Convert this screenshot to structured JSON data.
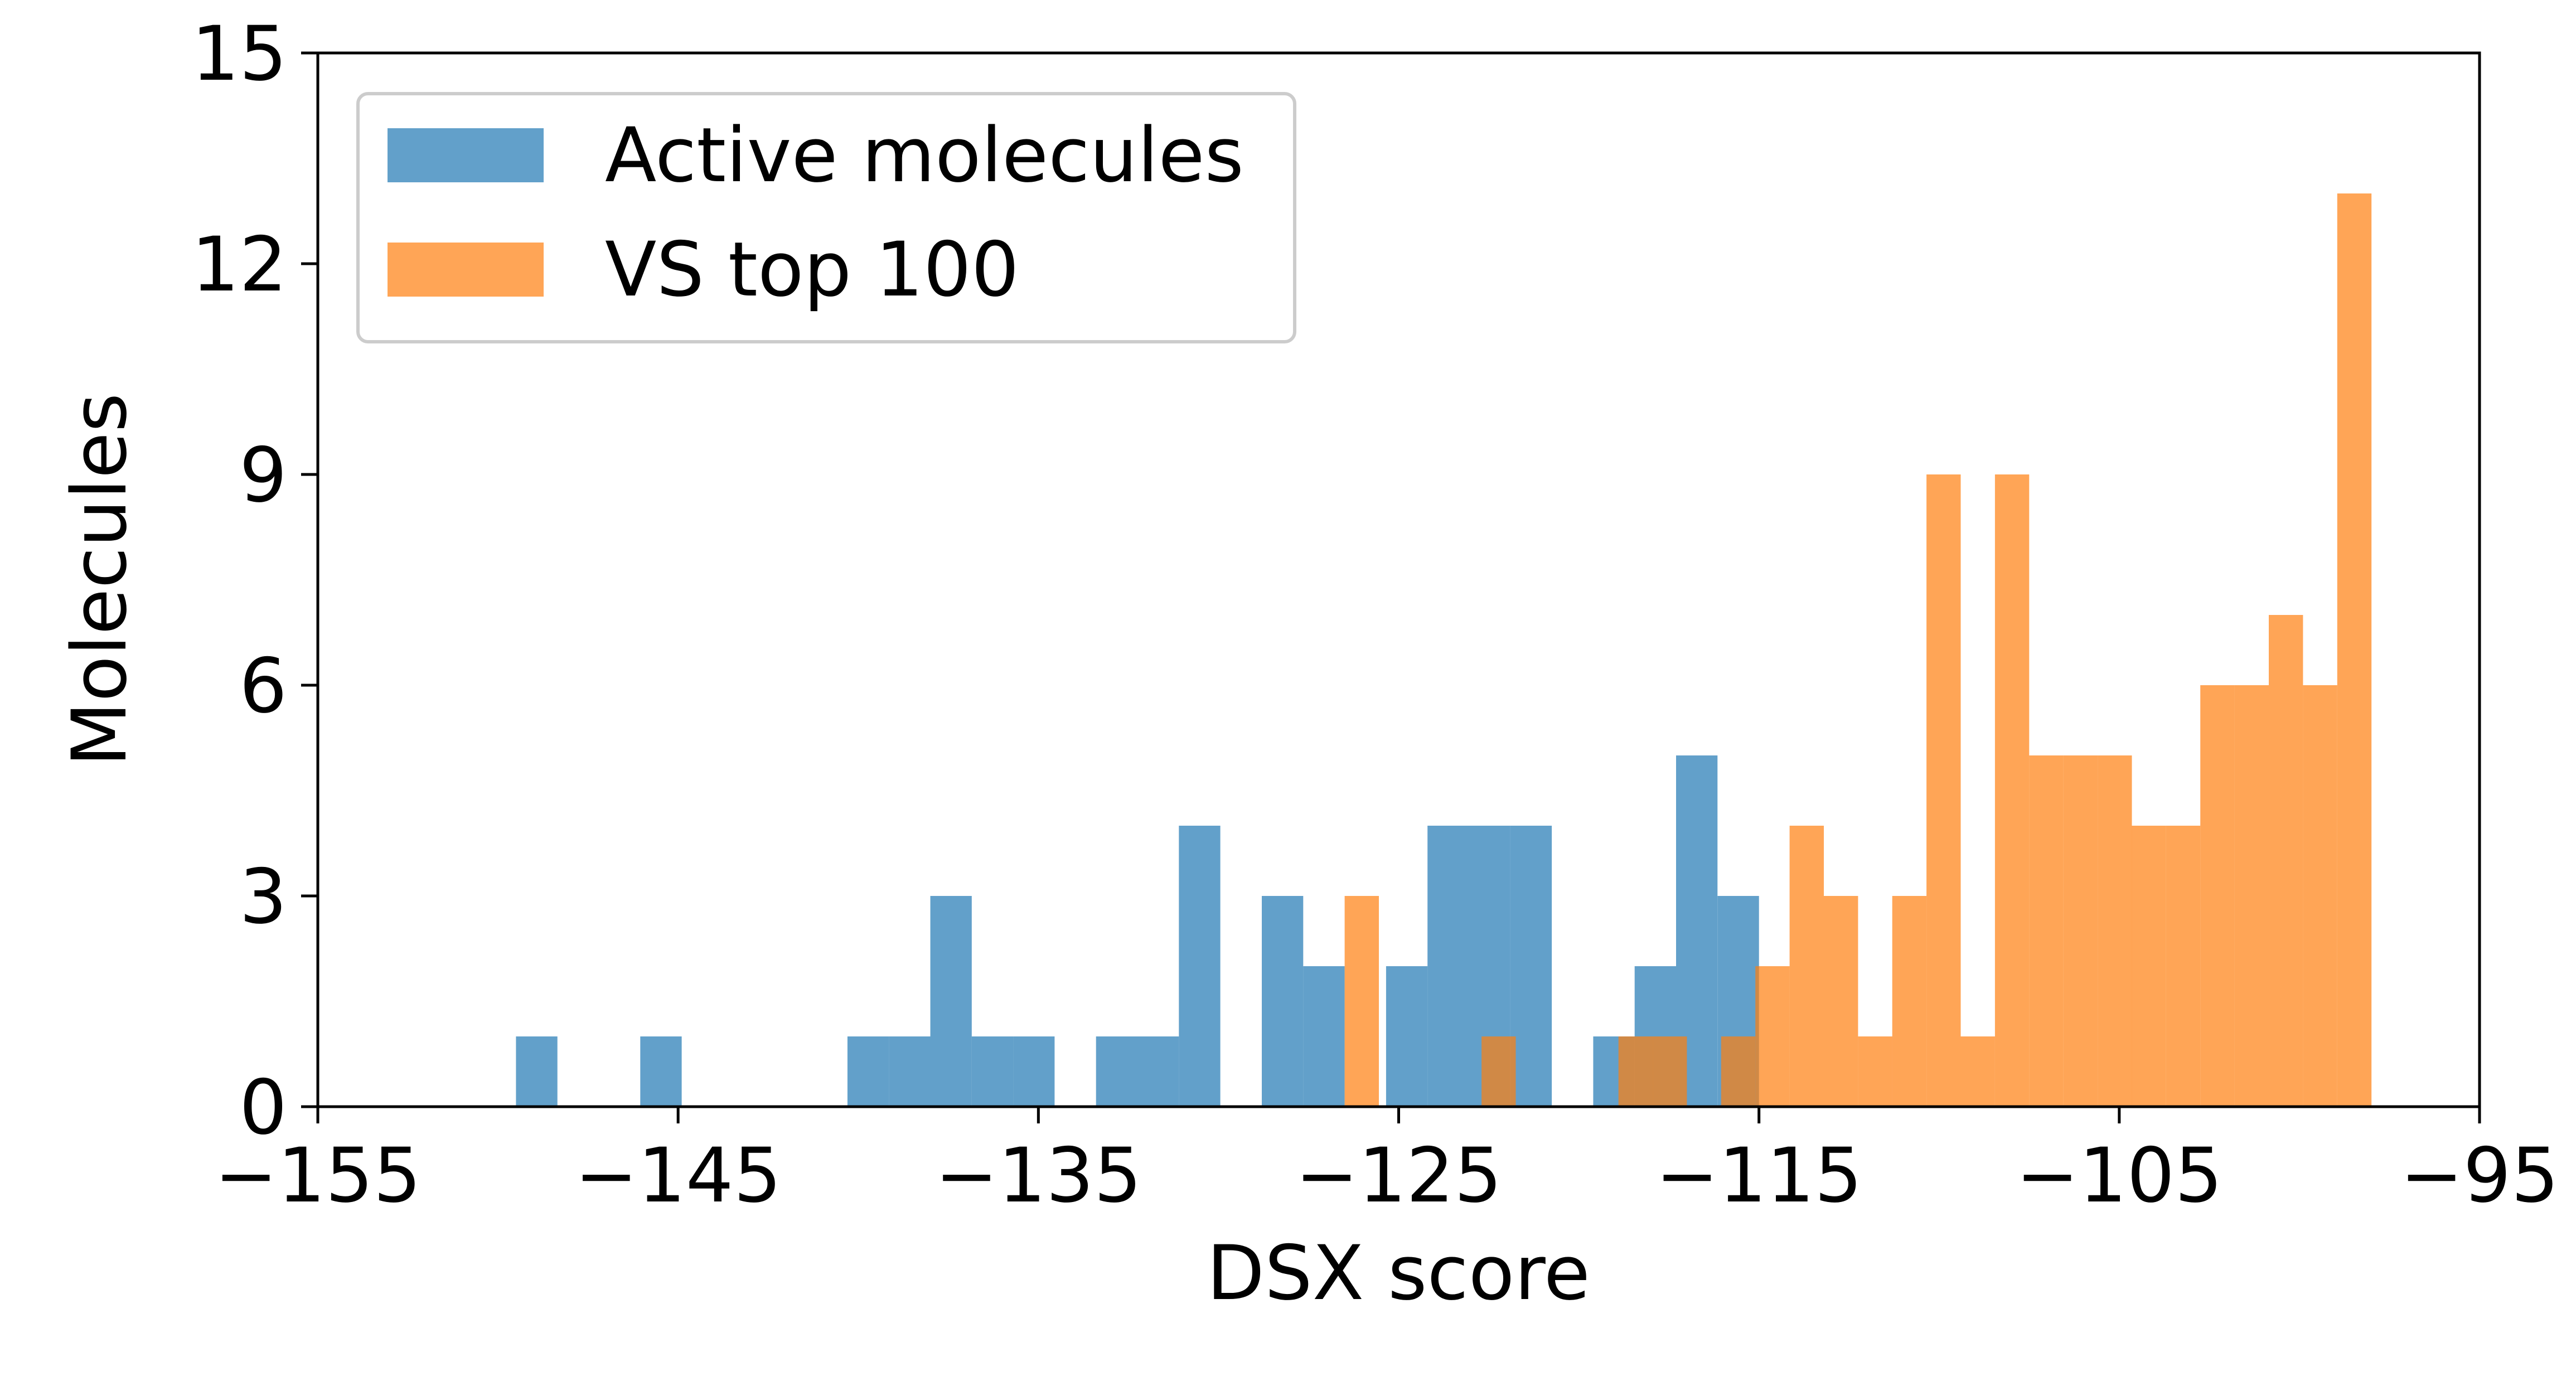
{
  "chart_data": {
    "type": "bar",
    "xlabel": "DSX score",
    "ylabel": "Molecules",
    "xlim": [
      -155,
      -95
    ],
    "ylim": [
      0,
      15
    ],
    "xticks": [
      -155,
      -145,
      -135,
      -125,
      -115,
      -105,
      -95
    ],
    "yticks": [
      0,
      3,
      6,
      9,
      12,
      15
    ],
    "x_tick_labels": [
      "−155",
      "−145",
      "−135",
      "−125",
      "−115",
      "−105",
      "−95"
    ],
    "y_tick_labels": [
      "0",
      "3",
      "6",
      "9",
      "12",
      "15"
    ],
    "grid": false,
    "legend_position": "top-left",
    "series": [
      {
        "name": "Active molecules",
        "color": "#1f77b4",
        "opacity": 0.7,
        "bins": [
          {
            "x0": -149.5,
            "x1": -148.35,
            "count": 1
          },
          {
            "x0": -146.05,
            "x1": -144.9,
            "count": 1
          },
          {
            "x0": -140.3,
            "x1": -139.15,
            "count": 1
          },
          {
            "x0": -139.15,
            "x1": -138.0,
            "count": 1
          },
          {
            "x0": -138.0,
            "x1": -136.85,
            "count": 3
          },
          {
            "x0": -136.85,
            "x1": -135.7,
            "count": 1
          },
          {
            "x0": -135.7,
            "x1": -134.55,
            "count": 1
          },
          {
            "x0": -133.4,
            "x1": -132.25,
            "count": 1
          },
          {
            "x0": -132.25,
            "x1": -131.1,
            "count": 1
          },
          {
            "x0": -131.1,
            "x1": -129.95,
            "count": 4
          },
          {
            "x0": -128.8,
            "x1": -127.65,
            "count": 3
          },
          {
            "x0": -127.65,
            "x1": -126.5,
            "count": 2
          },
          {
            "x0": -125.35,
            "x1": -124.2,
            "count": 2
          },
          {
            "x0": -124.2,
            "x1": -123.05,
            "count": 4
          },
          {
            "x0": -123.05,
            "x1": -121.9,
            "count": 4
          },
          {
            "x0": -121.9,
            "x1": -120.75,
            "count": 4
          },
          {
            "x0": -119.6,
            "x1": -118.45,
            "count": 1
          },
          {
            "x0": -118.45,
            "x1": -117.3,
            "count": 2
          },
          {
            "x0": -117.3,
            "x1": -116.15,
            "count": 5
          },
          {
            "x0": -116.15,
            "x1": -115.0,
            "count": 3
          }
        ]
      },
      {
        "name": "VS top 100",
        "color": "#ff7f0e",
        "opacity": 0.7,
        "bins": [
          {
            "x0": -126.5,
            "x1": -125.55,
            "count": 3
          },
          {
            "x0": -122.7,
            "x1": -121.75,
            "count": 1
          },
          {
            "x0": -118.9,
            "x1": -117.95,
            "count": 1
          },
          {
            "x0": -117.95,
            "x1": -117.0,
            "count": 1
          },
          {
            "x0": -116.05,
            "x1": -115.1,
            "count": 1
          },
          {
            "x0": -115.1,
            "x1": -114.15,
            "count": 2
          },
          {
            "x0": -114.15,
            "x1": -113.2,
            "count": 4
          },
          {
            "x0": -113.2,
            "x1": -112.25,
            "count": 3
          },
          {
            "x0": -112.25,
            "x1": -111.3,
            "count": 1
          },
          {
            "x0": -111.3,
            "x1": -110.35,
            "count": 3
          },
          {
            "x0": -110.35,
            "x1": -109.4,
            "count": 9
          },
          {
            "x0": -109.4,
            "x1": -108.45,
            "count": 1
          },
          {
            "x0": -108.45,
            "x1": -107.5,
            "count": 9
          },
          {
            "x0": -107.5,
            "x1": -106.55,
            "count": 5
          },
          {
            "x0": -106.55,
            "x1": -105.6,
            "count": 5
          },
          {
            "x0": -105.6,
            "x1": -104.65,
            "count": 5
          },
          {
            "x0": -104.65,
            "x1": -103.7,
            "count": 4
          },
          {
            "x0": -103.7,
            "x1": -102.75,
            "count": 4
          },
          {
            "x0": -102.75,
            "x1": -101.8,
            "count": 6
          },
          {
            "x0": -101.8,
            "x1": -100.85,
            "count": 6
          },
          {
            "x0": -100.85,
            "x1": -99.9,
            "count": 7
          },
          {
            "x0": -99.9,
            "x1": -98.95,
            "count": 6
          },
          {
            "x0": -98.95,
            "x1": -98.0,
            "count": 13
          }
        ]
      }
    ]
  }
}
